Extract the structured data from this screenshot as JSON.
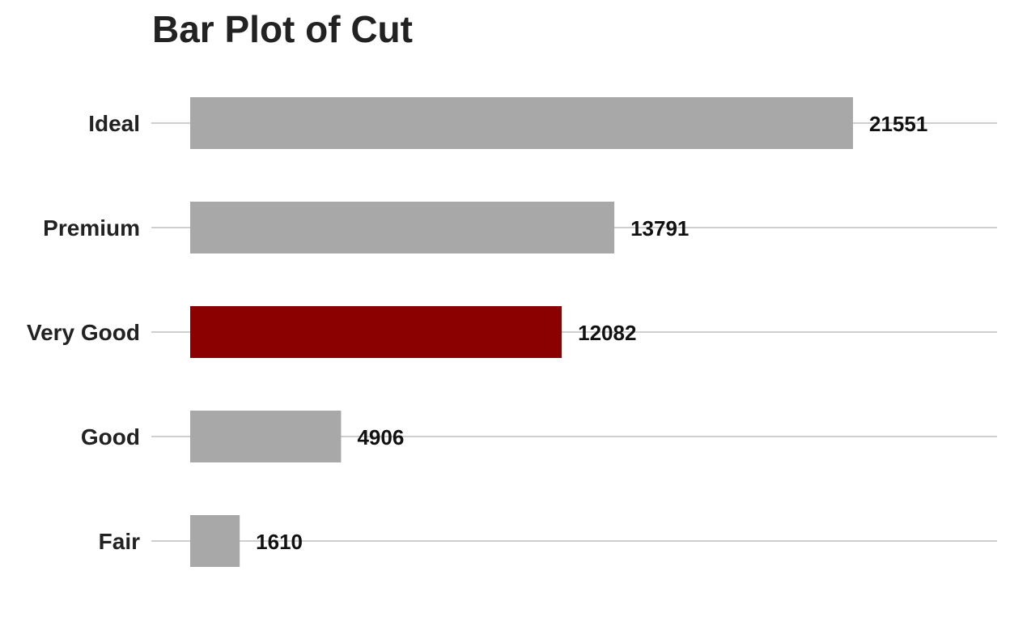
{
  "chart_data": {
    "type": "bar",
    "orientation": "horizontal",
    "title": "Bar Plot of Cut",
    "xlabel": "",
    "ylabel": "",
    "categories": [
      "Ideal",
      "Premium",
      "Very Good",
      "Good",
      "Fair"
    ],
    "values": [
      21551,
      13791,
      12082,
      4906,
      1610
    ],
    "data_labels": [
      "21551",
      "13791",
      "12082",
      "4906",
      "1610"
    ],
    "xlim": [
      0,
      26000
    ],
    "grid": "major y",
    "legend": "none",
    "colors": {
      "default": "#a8a8a8",
      "highlight": "#8b0000",
      "highlight_category": "Very Good"
    }
  }
}
